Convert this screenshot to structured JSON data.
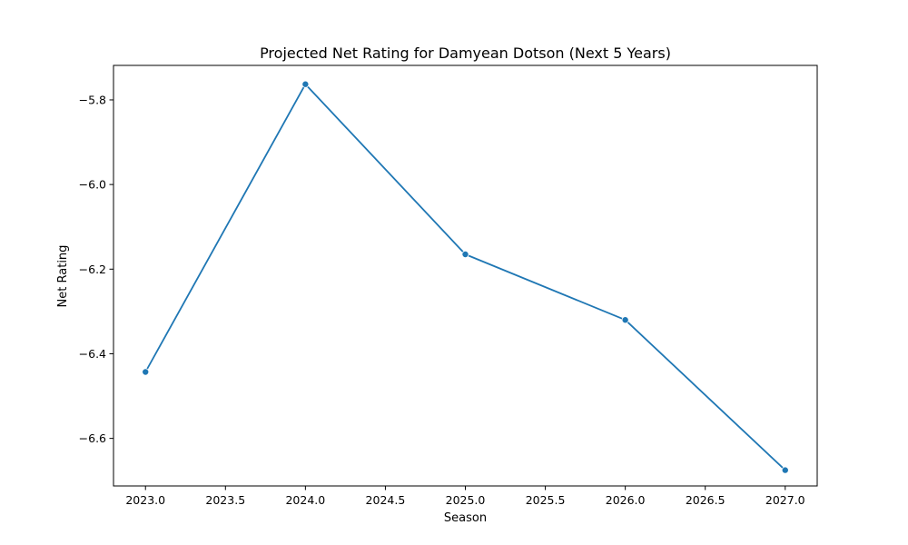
{
  "chart_data": {
    "type": "line",
    "title": "Projected Net Rating for Damyean Dotson (Next 5 Years)",
    "xlabel": "Season",
    "ylabel": "Net Rating",
    "x": [
      2023,
      2024,
      2025,
      2026,
      2027
    ],
    "series": [
      {
        "values": [
          -6.443,
          -5.763,
          -6.165,
          -6.32,
          -6.675
        ]
      }
    ],
    "xlim": [
      2022.8,
      2027.2
    ],
    "ylim": [
      -6.7124,
      -5.7185
    ],
    "xticks": [
      2023.0,
      2023.5,
      2024.0,
      2024.5,
      2025.0,
      2025.5,
      2026.0,
      2026.5,
      2027.0
    ],
    "xtick_labels": [
      "2023.0",
      "2023.5",
      "2024.0",
      "2024.5",
      "2025.0",
      "2025.5",
      "2026.0",
      "2026.5",
      "2027.0"
    ],
    "yticks": [
      -5.8,
      -6.0,
      -6.2,
      -6.4,
      -6.6
    ],
    "ytick_labels": [
      "−5.8",
      "−6.0",
      "−6.2",
      "−6.4",
      "−6.6"
    ],
    "grid": false,
    "line_color": "#1f77b4",
    "marker": "circle"
  }
}
